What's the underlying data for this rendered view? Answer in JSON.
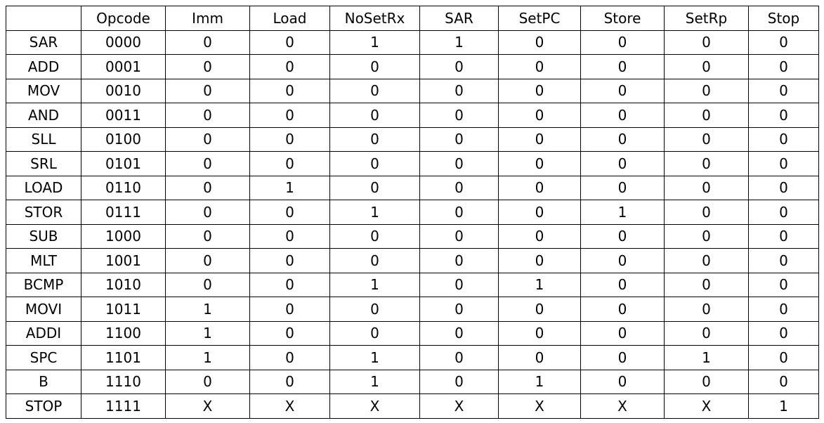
{
  "table": {
    "headers": [
      "",
      "Opcode",
      "Imm",
      "Load",
      "NoSetRx",
      "SAR",
      "SetPC",
      "Store",
      "SetRp",
      "Stop"
    ],
    "rows": [
      [
        "SAR",
        "0000",
        "0",
        "0",
        "1",
        "1",
        "0",
        "0",
        "0",
        "0"
      ],
      [
        "ADD",
        "0001",
        "0",
        "0",
        "0",
        "0",
        "0",
        "0",
        "0",
        "0"
      ],
      [
        "MOV",
        "0010",
        "0",
        "0",
        "0",
        "0",
        "0",
        "0",
        "0",
        "0"
      ],
      [
        "AND",
        "0011",
        "0",
        "0",
        "0",
        "0",
        "0",
        "0",
        "0",
        "0"
      ],
      [
        "SLL",
        "0100",
        "0",
        "0",
        "0",
        "0",
        "0",
        "0",
        "0",
        "0"
      ],
      [
        "SRL",
        "0101",
        "0",
        "0",
        "0",
        "0",
        "0",
        "0",
        "0",
        "0"
      ],
      [
        "LOAD",
        "0110",
        "0",
        "1",
        "0",
        "0",
        "0",
        "0",
        "0",
        "0"
      ],
      [
        "STOR",
        "0111",
        "0",
        "0",
        "1",
        "0",
        "0",
        "1",
        "0",
        "0"
      ],
      [
        "SUB",
        "1000",
        "0",
        "0",
        "0",
        "0",
        "0",
        "0",
        "0",
        "0"
      ],
      [
        "MLT",
        "1001",
        "0",
        "0",
        "0",
        "0",
        "0",
        "0",
        "0",
        "0"
      ],
      [
        "BCMP",
        "1010",
        "0",
        "0",
        "1",
        "0",
        "1",
        "0",
        "0",
        "0"
      ],
      [
        "MOVI",
        "1011",
        "1",
        "0",
        "0",
        "0",
        "0",
        "0",
        "0",
        "0"
      ],
      [
        "ADDI",
        "1100",
        "1",
        "0",
        "0",
        "0",
        "0",
        "0",
        "0",
        "0"
      ],
      [
        "SPC",
        "1101",
        "1",
        "0",
        "1",
        "0",
        "0",
        "0",
        "1",
        "0"
      ],
      [
        "B",
        "1110",
        "0",
        "0",
        "1",
        "0",
        "1",
        "0",
        "0",
        "0"
      ],
      [
        "STOP",
        "1111",
        "X",
        "X",
        "X",
        "X",
        "X",
        "X",
        "X",
        "1"
      ]
    ]
  }
}
